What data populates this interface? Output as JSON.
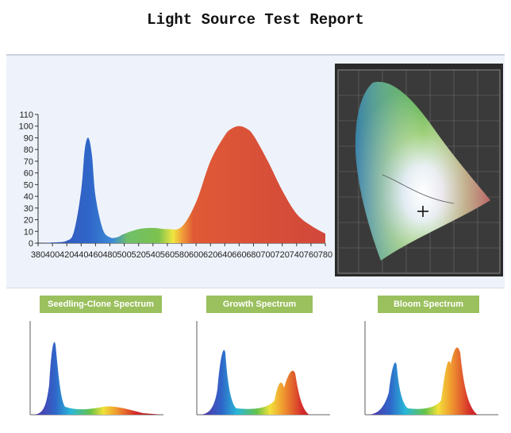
{
  "report": {
    "title": "Light Source Test Report"
  },
  "colors": {
    "blue_peak": "#2b66c8",
    "red_peak": "#d64036",
    "badge": "#9bc05e"
  },
  "cie_diagram": {
    "icon": "cie-chromaticity-diagram"
  },
  "spectra": [
    {
      "label": "Seedling-Clone Spectrum"
    },
    {
      "label": "Growth Spectrum"
    },
    {
      "label": "Bloom Spectrum"
    }
  ],
  "chart_data": [
    {
      "type": "area",
      "title": "",
      "xlabel": "",
      "ylabel": "",
      "xlim": [
        380,
        780
      ],
      "ylim": [
        0,
        110
      ],
      "x_ticks": [
        380,
        400,
        420,
        440,
        460,
        480,
        500,
        520,
        540,
        560,
        580,
        600,
        620,
        640,
        660,
        680,
        700,
        720,
        740,
        760,
        780
      ],
      "y_ticks": [
        0,
        10,
        20,
        30,
        40,
        50,
        60,
        70,
        80,
        90,
        100,
        110
      ],
      "x": [
        380,
        400,
        420,
        430,
        440,
        445,
        450,
        455,
        460,
        470,
        480,
        490,
        500,
        520,
        540,
        560,
        580,
        600,
        620,
        640,
        650,
        660,
        670,
        680,
        700,
        720,
        740,
        760,
        780
      ],
      "y": [
        0,
        0.5,
        2,
        10,
        45,
        80,
        90,
        75,
        40,
        12,
        5,
        5,
        8,
        12,
        13,
        12,
        14,
        35,
        70,
        92,
        98,
        100,
        98,
        92,
        70,
        45,
        25,
        15,
        8
      ],
      "grid": false
    }
  ]
}
